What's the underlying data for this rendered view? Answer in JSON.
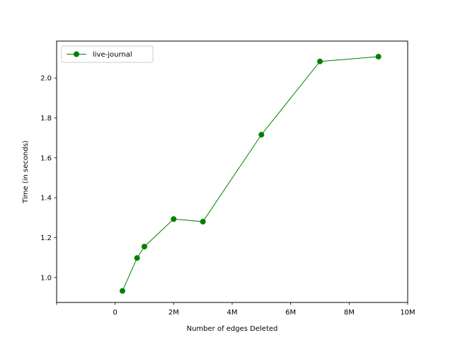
{
  "chart_data": {
    "type": "line",
    "xlabel": "Number of edges Deleted",
    "ylabel": "Time (in seconds)",
    "xlim": [
      -2000000,
      10000000
    ],
    "ylim": [
      0.875,
      2.185
    ],
    "xticks": [
      {
        "value": -2000000,
        "label": ""
      },
      {
        "value": 0,
        "label": "0"
      },
      {
        "value": 2000000,
        "label": "2M"
      },
      {
        "value": 4000000,
        "label": "4M"
      },
      {
        "value": 6000000,
        "label": "6M"
      },
      {
        "value": 8000000,
        "label": "8M"
      },
      {
        "value": 10000000,
        "label": "10M"
      }
    ],
    "yticks": [
      {
        "value": 1.0,
        "label": "1.0"
      },
      {
        "value": 1.2,
        "label": "1.2"
      },
      {
        "value": 1.4,
        "label": "1.4"
      },
      {
        "value": 1.6,
        "label": "1.6"
      },
      {
        "value": 1.8,
        "label": "1.8"
      },
      {
        "value": 2.0,
        "label": "2.0"
      }
    ],
    "grid": false,
    "legend_position": "top-left",
    "series": [
      {
        "name": "live-journal",
        "color": "#008000",
        "marker": "circle",
        "x": [
          250000,
          750000,
          1000000,
          2000000,
          3000000,
          5000000,
          7000000,
          9000000
        ],
        "y": [
          0.933,
          1.098,
          1.155,
          1.293,
          1.28,
          1.716,
          2.083,
          2.107
        ]
      }
    ]
  }
}
